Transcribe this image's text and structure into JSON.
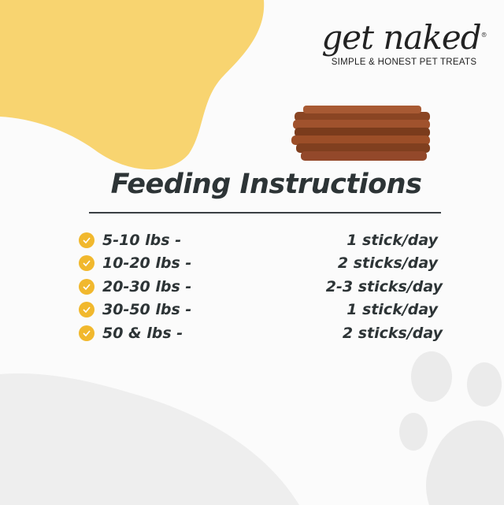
{
  "brand": {
    "name": "get naked",
    "registered": "®",
    "tagline": "SIMPLE & HONEST PET TREATS"
  },
  "colors": {
    "accent_yellow": "#f8d470",
    "check": "#f1b82d",
    "text": "#2d3436",
    "paw": "#ebebeb"
  },
  "title": "Feeding Instructions",
  "rows": [
    {
      "weight": "5-10 lbs -",
      "amount": "1 stick/day"
    },
    {
      "weight": "10-20 lbs -",
      "amount": "2 sticks/day"
    },
    {
      "weight": "20-30 lbs -",
      "amount": "2-3 sticks/day"
    },
    {
      "weight": "30-50 lbs -",
      "amount": "1 stick/day"
    },
    {
      "weight": "50 & lbs -",
      "amount": "2 sticks/day"
    }
  ],
  "icons": {
    "row_icon": "check-circle-icon",
    "decoration": "paw-print-icon"
  }
}
